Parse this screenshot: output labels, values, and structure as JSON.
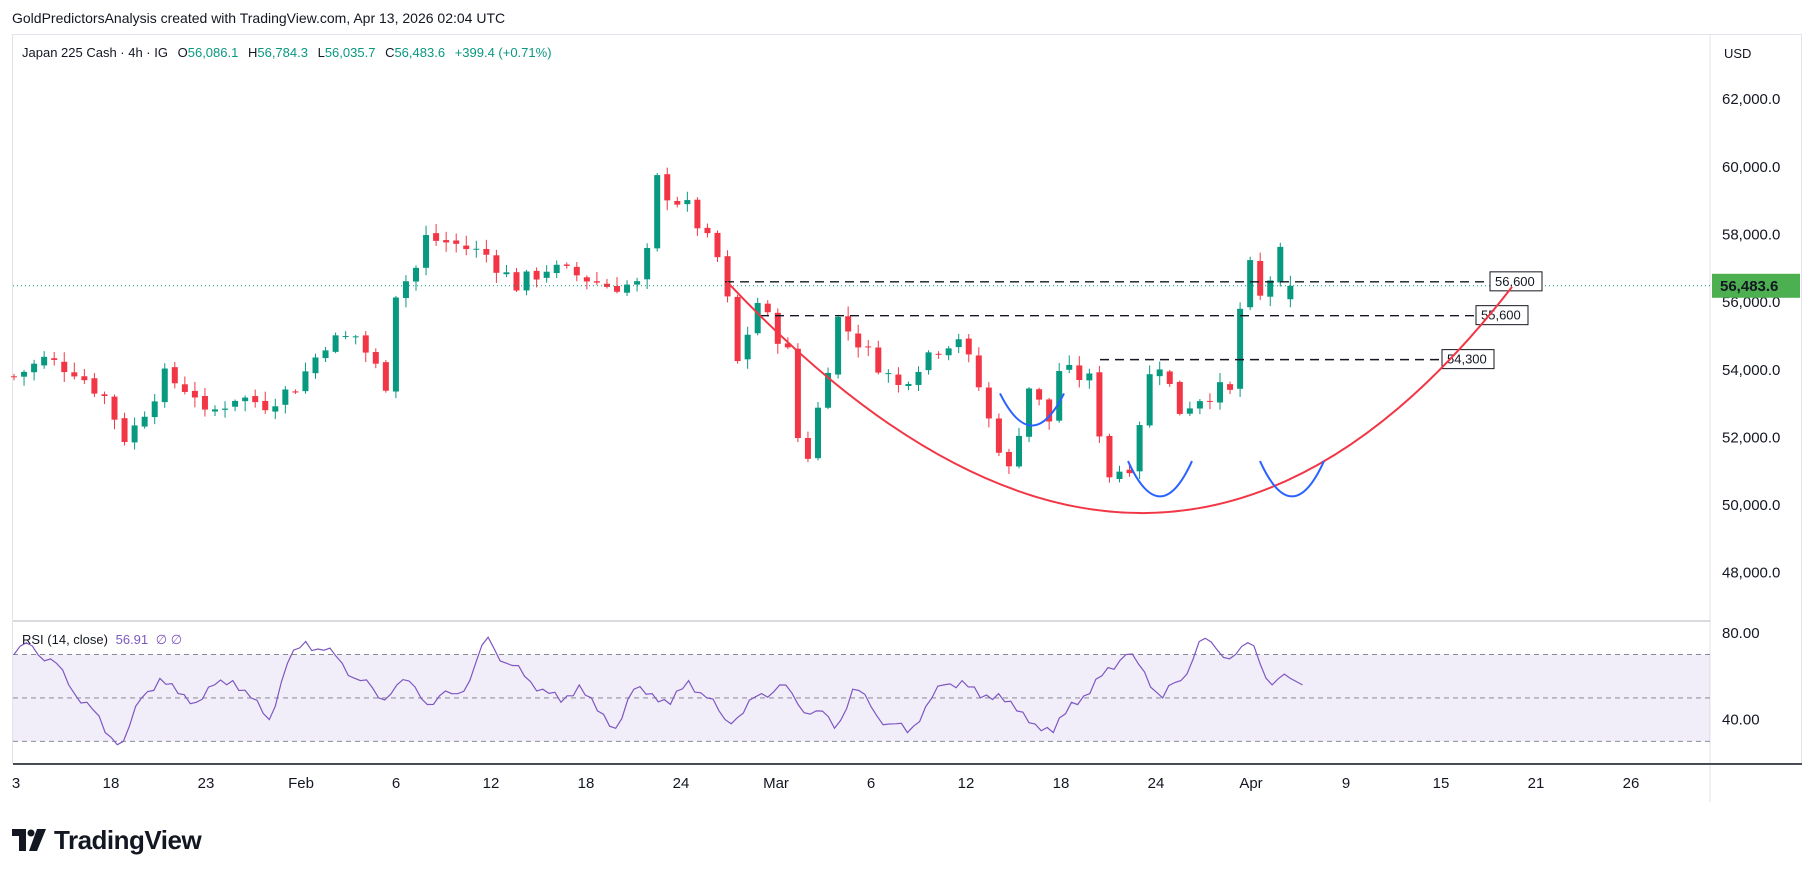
{
  "header": {
    "caption": "GoldPredictorsAnalysis created with TradingView.com, Apr 13, 2026 02:04 UTC"
  },
  "legend": {
    "symbol": "Japan 225 Cash · 4h · IG",
    "open_label": "O",
    "open": "56,086.1",
    "high_label": "H",
    "high": "56,784.3",
    "low_label": "L",
    "low": "56,035.7",
    "close_label": "C",
    "close": "56,483.6",
    "change": "+399.4 (+0.71%)"
  },
  "currency": "USD",
  "rsi_legend": {
    "label": "RSI (14, close)",
    "value": "56.91",
    "extra": "∅ ∅"
  },
  "branding": {
    "name": "TradingView"
  },
  "colors": {
    "up": "#089981",
    "down": "#f23645",
    "rsi": "#7e57c2",
    "curve": "#f23645",
    "arc": "#2962ff",
    "price_tag": "#4caf50"
  },
  "chart_data": {
    "type": "candlestick",
    "price_axis": {
      "min": 46600,
      "max": 63900,
      "ticks": [
        48000,
        50000,
        52000,
        54000,
        56000,
        58000,
        60000,
        62000
      ],
      "tick_labels": [
        "48,000.0",
        "50,000.0",
        "52,000.0",
        "54,000.0",
        "56,000.0",
        "58,000.0",
        "60,000.0",
        "62,000.0"
      ]
    },
    "last_price": {
      "value": 56483.6,
      "label": "56,483.6"
    },
    "time_axis": {
      "ticks": [
        "3",
        "18",
        "23",
        "Feb",
        "6",
        "12",
        "18",
        "24",
        "Mar",
        "6",
        "12",
        "18",
        "24",
        "Apr",
        "9",
        "15",
        "21",
        "26"
      ]
    },
    "price_path": [
      [
        0,
        53800
      ],
      [
        3,
        54300
      ],
      [
        6,
        54000
      ],
      [
        9,
        53200
      ],
      [
        11,
        52000
      ],
      [
        12,
        52300
      ],
      [
        15,
        53800
      ],
      [
        18,
        53300
      ],
      [
        19,
        52600
      ],
      [
        22,
        53200
      ],
      [
        25,
        53000
      ],
      [
        28,
        53500
      ],
      [
        31,
        54800
      ],
      [
        34,
        55000
      ],
      [
        37,
        53600
      ],
      [
        38,
        56300
      ],
      [
        40,
        57000
      ],
      [
        41,
        57900
      ],
      [
        44,
        57700
      ],
      [
        47,
        57400
      ],
      [
        50,
        56500
      ],
      [
        53,
        57000
      ],
      [
        56,
        56800
      ],
      [
        59,
        56500
      ],
      [
        62,
        56500
      ],
      [
        63,
        57400
      ],
      [
        64,
        59600
      ],
      [
        65,
        59200
      ],
      [
        67,
        58800
      ],
      [
        68,
        58300
      ],
      [
        70,
        57300
      ],
      [
        71,
        56000
      ],
      [
        72,
        54200
      ],
      [
        74,
        56000
      ],
      [
        77,
        54500
      ],
      [
        78,
        52000
      ],
      [
        79,
        51500
      ],
      [
        82,
        55500
      ],
      [
        85,
        54500
      ],
      [
        88,
        53500
      ],
      [
        91,
        54500
      ],
      [
        94,
        55000
      ],
      [
        96,
        53500
      ],
      [
        97,
        52500
      ],
      [
        99,
        51000
      ],
      [
        101,
        53500
      ],
      [
        103,
        52500
      ],
      [
        104,
        54000
      ],
      [
        107,
        53700
      ],
      [
        108,
        52200
      ],
      [
        109,
        50900
      ],
      [
        111,
        51200
      ],
      [
        113,
        53800
      ],
      [
        114,
        54200
      ],
      [
        116,
        52800
      ],
      [
        117,
        53000
      ],
      [
        118,
        53200
      ],
      [
        119,
        53300
      ],
      [
        120,
        53400
      ],
      [
        121,
        53300
      ],
      [
        122,
        55800
      ],
      [
        123,
        57000
      ],
      [
        124,
        56100
      ],
      [
        125,
        56700
      ],
      [
        126,
        57400
      ],
      [
        127,
        56484
      ]
    ],
    "rsi": {
      "label": "RSI (14, close)",
      "value": 56.91,
      "ylim": [
        20,
        85
      ],
      "levels": [
        70,
        50,
        30
      ],
      "ticks": [
        "80.00",
        "40.00"
      ],
      "values": [
        70,
        74,
        68,
        56,
        48,
        34,
        30,
        50,
        59,
        52,
        48,
        56,
        58,
        50,
        40,
        66,
        76,
        72,
        66,
        58,
        50,
        56,
        55,
        47,
        52,
        58,
        78,
        66,
        60,
        54,
        48,
        56,
        44,
        36,
        54,
        52,
        47,
        58,
        50,
        40,
        43,
        52,
        56,
        47,
        44,
        36,
        54,
        46,
        38,
        34,
        46,
        56,
        58,
        50,
        52,
        44,
        38,
        34,
        48,
        52,
        64,
        70,
        62,
        50,
        58,
        76,
        72,
        70,
        74,
        56,
        59
      ]
    },
    "levels": [
      {
        "value": 56600,
        "label": "56,600"
      },
      {
        "value": 55600,
        "label": "55,600"
      },
      {
        "value": 54300,
        "label": "54,300"
      }
    ],
    "annotations": [
      "cup curve",
      "three small rounded bottoms"
    ]
  }
}
